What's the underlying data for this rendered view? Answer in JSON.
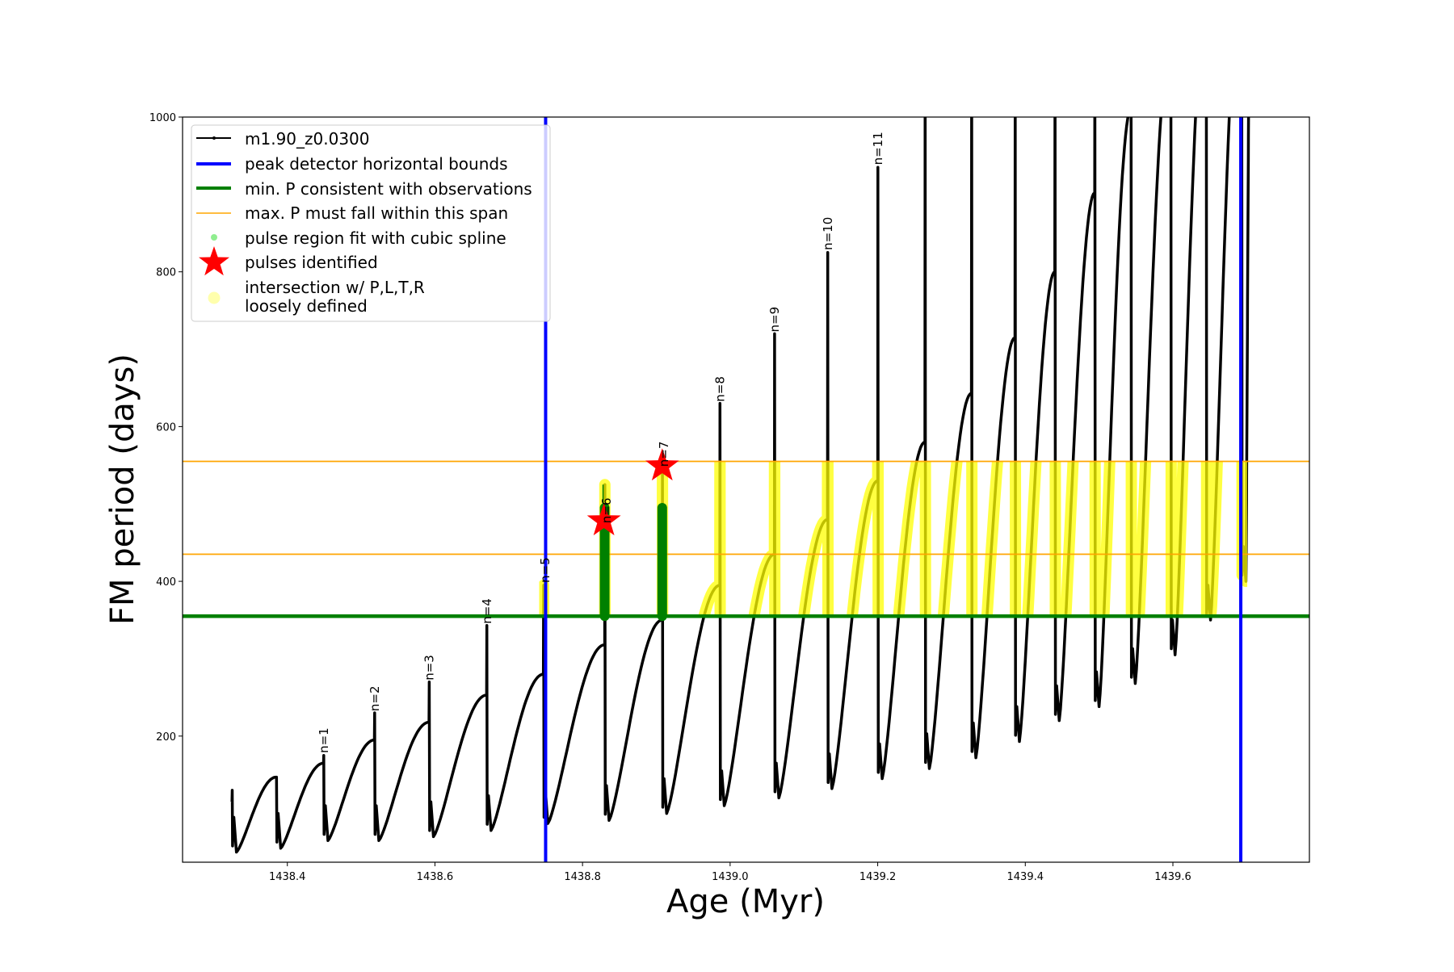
{
  "chart_data": {
    "type": "line",
    "title": "",
    "xlabel": "Age (Myr)",
    "ylabel": "FM period (days)",
    "xlim": [
      1438.258,
      1439.785
    ],
    "ylim": [
      37,
      1000
    ],
    "xticks": [
      1438.4,
      1438.6,
      1438.8,
      1439.0,
      1439.2,
      1439.4,
      1439.6
    ],
    "xtick_labels": [
      "1438.4",
      "1438.6",
      "1438.8",
      "1439.0",
      "1439.2",
      "1439.4",
      "1439.6"
    ],
    "yticks": [
      200,
      400,
      600,
      800,
      1000
    ],
    "ytick_labels": [
      "200",
      "400",
      "600",
      "800",
      "1000"
    ],
    "grid": false,
    "legend_placement": "upper-left",
    "colors": {
      "model": "#000000",
      "bounds": "#0000ff",
      "min_p": "#008000",
      "max_p": "#ffa500",
      "spline": "#90ee90",
      "pulse": "#ff0000",
      "intersection": "#ffff00"
    },
    "legend": [
      "m1.90_z0.0300",
      "peak detector horizontal bounds",
      "min. P consistent with observations",
      "max. P must fall within this span",
      "pulse region fit with cubic spline",
      "pulses identified",
      "intersection w/ P,L,T,R",
      "loosely defined"
    ],
    "series_name": "m1.90_z0.0300",
    "pulses": [
      {
        "age": 1438.325,
        "pre": 115,
        "spike": 130,
        "min": 50
      },
      {
        "age": 1438.385,
        "pre": 147,
        "spike": 147,
        "min": 55
      },
      {
        "age": 1438.449,
        "pre": 165,
        "spike": 175,
        "min": 65
      },
      {
        "age": 1438.518,
        "pre": 195,
        "spike": 230,
        "min": 65
      },
      {
        "age": 1438.592,
        "pre": 218,
        "spike": 270,
        "min": 70
      },
      {
        "age": 1438.67,
        "pre": 253,
        "spike": 343,
        "min": 78
      },
      {
        "age": 1438.747,
        "pre": 280,
        "spike": 395,
        "min": 87
      },
      {
        "age": 1438.83,
        "pre": 318,
        "spike": 525,
        "min": 91
      },
      {
        "age": 1438.908,
        "pre": 350,
        "spike": 550,
        "min": 100
      },
      {
        "age": 1438.986,
        "pre": 395,
        "spike": 630,
        "min": 110
      },
      {
        "age": 1439.06,
        "pre": 435,
        "spike": 720,
        "min": 120
      },
      {
        "age": 1439.132,
        "pre": 480,
        "spike": 825,
        "min": 132
      },
      {
        "age": 1439.2,
        "pre": 530,
        "spike": 935,
        "min": 145
      },
      {
        "age": 1439.264,
        "pre": 580,
        "spike": 1200,
        "min": 158
      },
      {
        "age": 1439.327,
        "pre": 643,
        "spike": 1200,
        "min": 172
      },
      {
        "age": 1439.386,
        "pre": 715,
        "spike": 1200,
        "min": 193
      },
      {
        "age": 1439.44,
        "pre": 800,
        "spike": 1200,
        "min": 220
      },
      {
        "age": 1439.494,
        "pre": 902,
        "spike": 1200,
        "min": 238
      },
      {
        "age": 1439.543,
        "pre": 1010,
        "spike": 1200,
        "min": 268
      },
      {
        "age": 1439.597,
        "pre": 1100,
        "spike": 1200,
        "min": 305
      },
      {
        "age": 1439.645,
        "pre": 1150,
        "spike": 1200,
        "min": 350
      },
      {
        "age": 1439.693,
        "pre": 1200,
        "spike": 1200,
        "min": 400
      }
    ],
    "vertical_bounds": [
      1438.75,
      1439.692
    ],
    "min_p": 355,
    "max_p_span": [
      435,
      555
    ],
    "spline_fits": [
      {
        "age": 1438.83,
        "from": 355,
        "to": 495,
        "tip": 525
      },
      {
        "age": 1438.908,
        "from": 355,
        "to": 495
      }
    ],
    "pulses_identified": [
      {
        "age": 1438.829,
        "value": 478
      },
      {
        "age": 1438.908,
        "value": 549
      }
    ],
    "annotations": [
      {
        "text": "n=1",
        "age": 1438.455,
        "value": 178
      },
      {
        "text": "n=2",
        "age": 1438.524,
        "value": 232
      },
      {
        "text": "n=3",
        "age": 1438.598,
        "value": 272
      },
      {
        "text": "n=4",
        "age": 1438.676,
        "value": 345
      },
      {
        "text": "n=5",
        "age": 1438.755,
        "value": 398
      },
      {
        "text": "n=6",
        "age": 1438.838,
        "value": 475
      },
      {
        "text": "n=7",
        "age": 1438.916,
        "value": 548
      },
      {
        "text": "n=8",
        "age": 1438.992,
        "value": 632
      },
      {
        "text": "n=9",
        "age": 1439.066,
        "value": 722
      },
      {
        "text": "n=10",
        "age": 1439.138,
        "value": 828
      },
      {
        "text": "n=11",
        "age": 1439.206,
        "value": 938
      }
    ]
  }
}
